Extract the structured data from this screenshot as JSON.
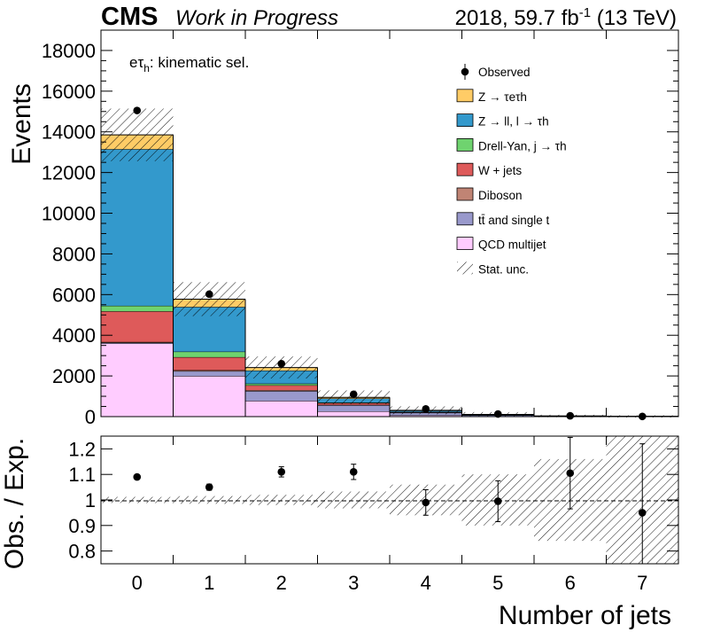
{
  "header": {
    "cms": "CMS",
    "status": "Work in Progress",
    "lumi": "2018, 59.7 fb",
    "lumi_sup": "-1",
    "energy": " (13 TeV)"
  },
  "category_label": {
    "prefix": "e",
    "tau": "τ",
    "sub": "h",
    "suffix": ": kinematic sel."
  },
  "chart_data": {
    "type": "bar",
    "stacked": true,
    "xlabel": "Number of jets",
    "ylabel_top": "Events",
    "ylabel_bottom": "Obs. / Exp.",
    "categories": [
      "0",
      "1",
      "2",
      "3",
      "4",
      "5",
      "6",
      "7"
    ],
    "ylim_top": [
      0,
      19000
    ],
    "yticks_top": [
      0,
      2000,
      4000,
      6000,
      8000,
      10000,
      12000,
      14000,
      16000,
      18000
    ],
    "ylim_bottom": [
      0.75,
      1.25
    ],
    "yticks_bottom": [
      0.8,
      0.9,
      1,
      1.1,
      1.2
    ],
    "series": [
      {
        "name": "QCD multijet",
        "color": "#ffccff",
        "values": [
          3600,
          2000,
          780,
          260,
          70,
          22,
          6,
          1
        ]
      },
      {
        "name": "tt̄ and single t",
        "color": "#9999cc",
        "values": [
          40,
          240,
          480,
          300,
          120,
          45,
          12,
          3
        ]
      },
      {
        "name": "Diboson",
        "color": "#c08474",
        "values": [
          30,
          45,
          40,
          20,
          8,
          3,
          1,
          0.5
        ]
      },
      {
        "name": "W + jets",
        "color": "#de5a5a",
        "values": [
          1510,
          640,
          240,
          90,
          28,
          10,
          3,
          1
        ]
      },
      {
        "name": "Drell-Yan, j → τh",
        "color": "#6fd36f",
        "values": [
          270,
          270,
          85,
          25,
          8,
          3,
          1,
          0.5
        ]
      },
      {
        "name": "Z → ll, l → τh",
        "color": "#3399cc",
        "values": [
          7700,
          2200,
          640,
          200,
          60,
          20,
          6,
          2
        ]
      },
      {
        "name": "Z → τeτh",
        "color": "#ffcc66",
        "values": [
          700,
          380,
          150,
          55,
          18,
          6,
          2,
          1
        ]
      }
    ],
    "observed": {
      "name": "Observed",
      "values": [
        15050,
        6020,
        2600,
        1100,
        380,
        130,
        40,
        10
      ]
    },
    "ratio": {
      "values": [
        1.09,
        1.05,
        1.11,
        1.11,
        0.99,
        0.995,
        1.105,
        0.95
      ],
      "errors": [
        0.008,
        0.012,
        0.02,
        0.03,
        0.05,
        0.08,
        0.14,
        0.27
      ],
      "unc": [
        0.012,
        0.015,
        0.02,
        0.033,
        0.06,
        0.1,
        0.16,
        0.34
      ]
    },
    "legend": {
      "position": "top-right",
      "stat_unc": "Stat. unc."
    }
  }
}
